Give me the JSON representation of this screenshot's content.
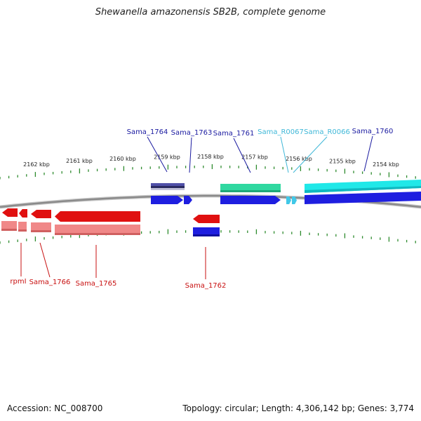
{
  "title": "Shewanella amazonensis SB2B, complete genome",
  "footer": {
    "accession": "Accession: NC_008700",
    "summary": "Topology: circular; Length: 4,306,142 bp; Genes: 3,774"
  },
  "colors": {
    "backbone": "#8a8a8a",
    "ticks": "#2e8b2e",
    "forward_gene": "#1e1ee0",
    "reverse_gene": "#e01010",
    "reverse_gene_light": "#f08888",
    "trna": "#40c8e8",
    "cds_purple": "#5050a8",
    "cds_green": "#30d8a0",
    "cds_cyan": "#20e8e8"
  },
  "kbp_labels": [
    "2162 kbp",
    "2161 kbp",
    "2160 kbp",
    "2159 kbp",
    "2158 kbp",
    "2157 kbp",
    "2156 kbp",
    "2155 kbp",
    "2154 kbp"
  ],
  "top_genes": [
    {
      "name": "Sama_1764",
      "color": "#1a1aa0"
    },
    {
      "name": "Sama_1763",
      "color": "#1a1aa0"
    },
    {
      "name": "Sama_1761",
      "color": "#1a1aa0"
    },
    {
      "name": "Sama_R0067",
      "color": "#40b8d8"
    },
    {
      "name": "Sama_R0066",
      "color": "#40b8d8"
    },
    {
      "name": "Sama_1760",
      "color": "#1a1aa0"
    }
  ],
  "bottom_genes": [
    {
      "name": "rpmI",
      "color": "#c81010"
    },
    {
      "name": "Sama_1766",
      "color": "#c81010"
    },
    {
      "name": "Sama_1765",
      "color": "#c81010"
    },
    {
      "name": "Sama_1762",
      "color": "#c81010"
    }
  ]
}
